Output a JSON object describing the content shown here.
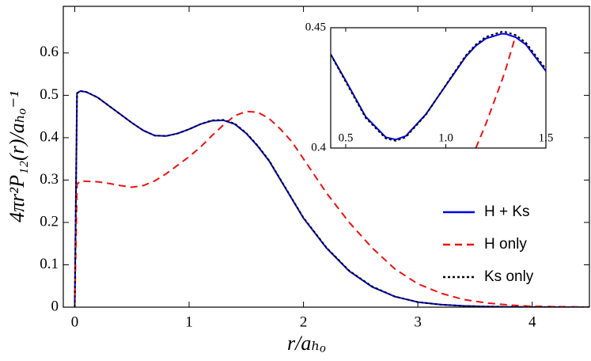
{
  "chart_data": [
    {
      "type": "line",
      "xlabel": "r/aₕₒ",
      "ylabel": "4πr²P₁₂(r)/aₕₒ⁻¹",
      "x": [
        0,
        0.02,
        0.05,
        0.1,
        0.2,
        0.3,
        0.4,
        0.5,
        0.6,
        0.7,
        0.8,
        0.9,
        1.0,
        1.1,
        1.2,
        1.3,
        1.4,
        1.5,
        1.6,
        1.7,
        1.8,
        1.9,
        2.0,
        2.2,
        2.4,
        2.6,
        2.8,
        3.0,
        3.2,
        3.4,
        3.6,
        3.8,
        4.0,
        4.5
      ],
      "series": [
        {
          "name": "H + Ks",
          "color": "#0000ee",
          "linestyle": "solid",
          "values": [
            0,
            0.505,
            0.51,
            0.508,
            0.495,
            0.475,
            0.455,
            0.435,
            0.417,
            0.405,
            0.404,
            0.41,
            0.42,
            0.432,
            0.44,
            0.441,
            0.432,
            0.41,
            0.38,
            0.345,
            0.3,
            0.255,
            0.21,
            0.14,
            0.085,
            0.048,
            0.025,
            0.012,
            0.006,
            0.003,
            0.0015,
            0.0007,
            0.0003,
            0
          ]
        },
        {
          "name": "H only",
          "color": "#ee1111",
          "linestyle": "dashed",
          "values": [
            0,
            0.29,
            0.298,
            0.297,
            0.296,
            0.292,
            0.287,
            0.283,
            0.287,
            0.298,
            0.315,
            0.335,
            0.355,
            0.378,
            0.405,
            0.43,
            0.452,
            0.462,
            0.46,
            0.445,
            0.42,
            0.39,
            0.35,
            0.27,
            0.2,
            0.14,
            0.09,
            0.055,
            0.033,
            0.018,
            0.01,
            0.005,
            0.002,
            0
          ]
        },
        {
          "name": "Ks only",
          "color": "#000000",
          "linestyle": "dotted",
          "values": [
            0,
            0.505,
            0.51,
            0.508,
            0.495,
            0.475,
            0.455,
            0.435,
            0.417,
            0.405,
            0.404,
            0.41,
            0.42,
            0.432,
            0.441,
            0.442,
            0.433,
            0.411,
            0.381,
            0.346,
            0.301,
            0.256,
            0.211,
            0.141,
            0.086,
            0.049,
            0.025,
            0.012,
            0.006,
            0.003,
            0.0015,
            0.0007,
            0.0003,
            0
          ]
        }
      ],
      "xlim": [
        -0.1,
        4.5
      ],
      "ylim": [
        0,
        0.71
      ],
      "xticks": [
        0,
        1,
        2,
        3,
        4
      ],
      "yticks": [
        0,
        0.1,
        0.2,
        0.3,
        0.4,
        0.5,
        0.6
      ],
      "legend": "right"
    },
    {
      "type": "line",
      "x": [
        0.425,
        0.5,
        0.6,
        0.7,
        0.75,
        0.8,
        0.9,
        1.0,
        1.1,
        1.15,
        1.2,
        1.28,
        1.3,
        1.35,
        1.4,
        1.5
      ],
      "series": [
        {
          "color": "#0000ee",
          "linestyle": "solid",
          "values": [
            0.439,
            0.428,
            0.413,
            0.4045,
            0.4035,
            0.405,
            0.414,
            0.426,
            0.438,
            0.4425,
            0.4455,
            0.4475,
            0.4474,
            0.446,
            0.443,
            0.432
          ]
        },
        {
          "color": "#ee1111",
          "linestyle": "dashed",
          "values": [
            null,
            null,
            null,
            null,
            null,
            null,
            null,
            null,
            null,
            0.4,
            0.41,
            0.428,
            0.433,
            0.447,
            null,
            null
          ]
        },
        {
          "color": "#000000",
          "linestyle": "dotted",
          "values": [
            0.4388,
            0.4275,
            0.4125,
            0.404,
            0.403,
            0.4045,
            0.4138,
            0.4262,
            0.4385,
            0.443,
            0.4462,
            0.4483,
            0.4482,
            0.4469,
            0.4438,
            0.4328
          ]
        }
      ],
      "xlim": [
        0.425,
        1.5
      ],
      "ylim": [
        0.4,
        0.45
      ],
      "xticks": [
        {
          "value": 0.5,
          "label": "0.5"
        },
        {
          "value": 1.0,
          "label": "1.0"
        },
        {
          "value": 1.5,
          "label": "1.5"
        }
      ],
      "yticks": [
        0.4,
        0.45
      ]
    }
  ]
}
